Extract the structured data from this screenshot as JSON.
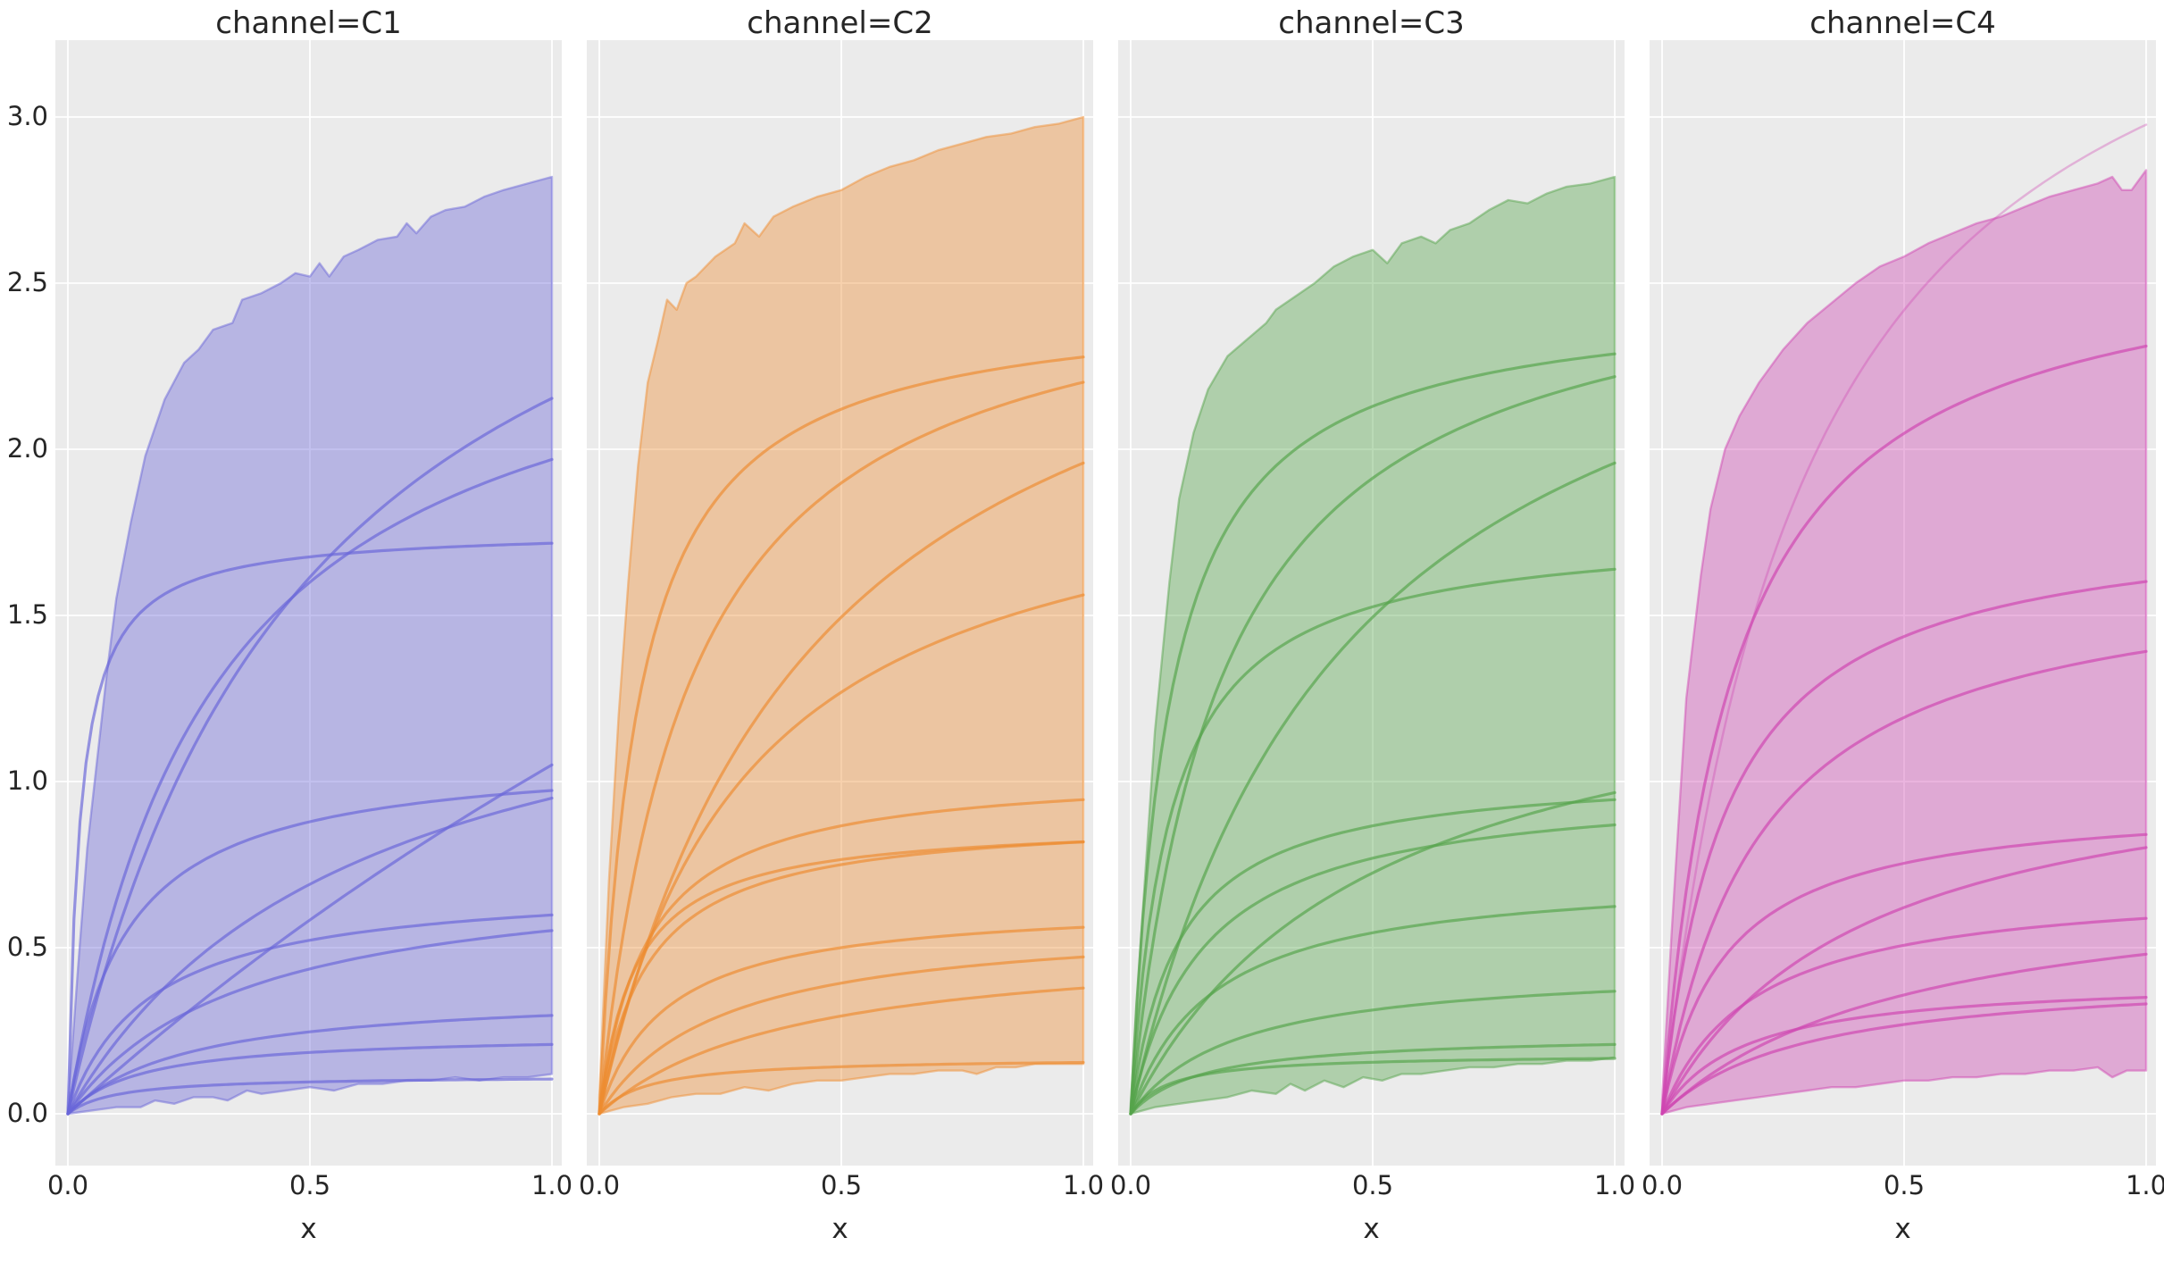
{
  "figure": {
    "background": "#ffffff",
    "panel_background": "#ebebeb",
    "grid_color": "#ffffff",
    "text_color": "#262626",
    "facet_variable": "channel",
    "facets": [
      "C1",
      "C2",
      "C3",
      "C4"
    ]
  },
  "chart_data": [
    {
      "type": "line",
      "title": "channel=C1",
      "facet": "C1",
      "color": "#6965d8",
      "xlabel": "x",
      "x_ticks": [
        0.0,
        0.5,
        1.0
      ],
      "x_tick_labels": [
        "0.0",
        "0.5",
        "1.0"
      ],
      "y_ticks": [
        0.0,
        0.5,
        1.0,
        1.5,
        2.0,
        2.5,
        3.0
      ],
      "y_tick_labels": [
        "0.0",
        "0.5",
        "1.0",
        "1.5",
        "2.0",
        "2.5",
        "3.0"
      ],
      "x_range": [
        0,
        1
      ],
      "y_range": [
        0,
        3
      ],
      "band": {
        "top": [
          [
            0,
            0.02
          ],
          [
            0.02,
            0.42
          ],
          [
            0.04,
            0.8
          ],
          [
            0.06,
            1.06
          ],
          [
            0.08,
            1.32
          ],
          [
            0.1,
            1.55
          ],
          [
            0.13,
            1.78
          ],
          [
            0.16,
            1.98
          ],
          [
            0.2,
            2.15
          ],
          [
            0.24,
            2.26
          ],
          [
            0.27,
            2.3
          ],
          [
            0.3,
            2.36
          ],
          [
            0.34,
            2.38
          ],
          [
            0.36,
            2.45
          ],
          [
            0.4,
            2.47
          ],
          [
            0.44,
            2.5
          ],
          [
            0.47,
            2.53
          ],
          [
            0.5,
            2.52
          ],
          [
            0.52,
            2.56
          ],
          [
            0.54,
            2.52
          ],
          [
            0.57,
            2.58
          ],
          [
            0.6,
            2.6
          ],
          [
            0.64,
            2.63
          ],
          [
            0.68,
            2.64
          ],
          [
            0.7,
            2.68
          ],
          [
            0.72,
            2.65
          ],
          [
            0.75,
            2.7
          ],
          [
            0.78,
            2.72
          ],
          [
            0.82,
            2.73
          ],
          [
            0.86,
            2.76
          ],
          [
            0.9,
            2.78
          ],
          [
            0.95,
            2.8
          ],
          [
            1,
            2.82
          ]
        ],
        "bottom": [
          [
            0,
            0
          ],
          [
            0.05,
            0.01
          ],
          [
            0.1,
            0.02
          ],
          [
            0.15,
            0.02
          ],
          [
            0.18,
            0.04
          ],
          [
            0.22,
            0.03
          ],
          [
            0.26,
            0.05
          ],
          [
            0.3,
            0.05
          ],
          [
            0.33,
            0.04
          ],
          [
            0.37,
            0.07
          ],
          [
            0.4,
            0.06
          ],
          [
            0.45,
            0.07
          ],
          [
            0.5,
            0.08
          ],
          [
            0.55,
            0.07
          ],
          [
            0.6,
            0.09
          ],
          [
            0.65,
            0.09
          ],
          [
            0.7,
            0.1
          ],
          [
            0.75,
            0.1
          ],
          [
            0.8,
            0.11
          ],
          [
            0.85,
            0.1
          ],
          [
            0.9,
            0.11
          ],
          [
            0.95,
            0.11
          ],
          [
            1,
            0.12
          ]
        ]
      },
      "curves": [
        {
          "vmax": 1.76,
          "km": 0.025,
          "y_at_x1": 1.72
        },
        {
          "vmax": 3.23,
          "km": 0.5,
          "y_at_x1": 2.15
        },
        {
          "vmax": 2.56,
          "km": 0.3,
          "y_at_x1": 1.97
        },
        {
          "vmax": 5.25,
          "km": 4.0,
          "y_at_x1": 1.05
        },
        {
          "vmax": 1.09,
          "km": 0.12,
          "y_at_x1": 0.97
        },
        {
          "vmax": 1.52,
          "km": 0.6,
          "y_at_x1": 0.95
        },
        {
          "vmax": 0.7,
          "km": 0.17,
          "y_at_x1": 0.6
        },
        {
          "vmax": 0.75,
          "km": 0.36,
          "y_at_x1": 0.55
        },
        {
          "vmax": 0.37,
          "km": 0.25,
          "y_at_x1": 0.3
        },
        {
          "vmax": 0.24,
          "km": 0.15,
          "y_at_x1": 0.21
        },
        {
          "vmax": 0.115,
          "km": 0.1,
          "y_at_x1": 0.1
        }
      ]
    },
    {
      "type": "line",
      "title": "channel=C2",
      "facet": "C2",
      "color": "#ee8c31",
      "xlabel": "x",
      "x_ticks": [
        0.0,
        0.5,
        1.0
      ],
      "x_tick_labels": [
        "0.0",
        "0.5",
        "1.0"
      ],
      "y_ticks": [
        0.0,
        0.5,
        1.0,
        1.5,
        2.0,
        2.5,
        3.0
      ],
      "y_tick_labels": [
        "0.0",
        "0.5",
        "1.0",
        "1.5",
        "2.0",
        "2.5",
        "3.0"
      ],
      "x_range": [
        0,
        1
      ],
      "y_range": [
        0,
        3
      ],
      "band": {
        "top": [
          [
            0,
            0.05
          ],
          [
            0.02,
            0.7
          ],
          [
            0.04,
            1.2
          ],
          [
            0.06,
            1.6
          ],
          [
            0.08,
            1.95
          ],
          [
            0.1,
            2.2
          ],
          [
            0.12,
            2.32
          ],
          [
            0.14,
            2.45
          ],
          [
            0.16,
            2.42
          ],
          [
            0.18,
            2.5
          ],
          [
            0.2,
            2.52
          ],
          [
            0.24,
            2.58
          ],
          [
            0.28,
            2.62
          ],
          [
            0.3,
            2.68
          ],
          [
            0.33,
            2.64
          ],
          [
            0.36,
            2.7
          ],
          [
            0.4,
            2.73
          ],
          [
            0.45,
            2.76
          ],
          [
            0.5,
            2.78
          ],
          [
            0.55,
            2.82
          ],
          [
            0.6,
            2.85
          ],
          [
            0.65,
            2.87
          ],
          [
            0.7,
            2.9
          ],
          [
            0.75,
            2.92
          ],
          [
            0.8,
            2.94
          ],
          [
            0.85,
            2.95
          ],
          [
            0.9,
            2.97
          ],
          [
            0.95,
            2.98
          ],
          [
            1,
            3.0
          ]
        ],
        "bottom": [
          [
            0,
            0
          ],
          [
            0.05,
            0.02
          ],
          [
            0.1,
            0.03
          ],
          [
            0.15,
            0.05
          ],
          [
            0.2,
            0.06
          ],
          [
            0.25,
            0.06
          ],
          [
            0.3,
            0.08
          ],
          [
            0.35,
            0.07
          ],
          [
            0.4,
            0.09
          ],
          [
            0.45,
            0.1
          ],
          [
            0.5,
            0.1
          ],
          [
            0.55,
            0.11
          ],
          [
            0.6,
            0.12
          ],
          [
            0.65,
            0.12
          ],
          [
            0.7,
            0.13
          ],
          [
            0.75,
            0.13
          ],
          [
            0.78,
            0.12
          ],
          [
            0.82,
            0.14
          ],
          [
            0.86,
            0.14
          ],
          [
            0.9,
            0.15
          ],
          [
            0.95,
            0.15
          ],
          [
            1,
            0.15
          ]
        ]
      },
      "curves": [
        {
          "vmax": 2.46,
          "km": 0.08,
          "y_at_x1": 2.28
        },
        {
          "vmax": 2.62,
          "km": 0.19,
          "y_at_x1": 2.2
        },
        {
          "vmax": 2.84,
          "km": 0.45,
          "y_at_x1": 1.96
        },
        {
          "vmax": 2.03,
          "km": 0.3,
          "y_at_x1": 1.56
        },
        {
          "vmax": 1.04,
          "km": 0.1,
          "y_at_x1": 0.95
        },
        {
          "vmax": 0.9,
          "km": 0.1,
          "y_at_x1": 0.82
        },
        {
          "vmax": 0.88,
          "km": 0.075,
          "y_at_x1": 0.82
        },
        {
          "vmax": 0.64,
          "km": 0.14,
          "y_at_x1": 0.56
        },
        {
          "vmax": 0.59,
          "km": 0.25,
          "y_at_x1": 0.47
        },
        {
          "vmax": 0.53,
          "km": 0.4,
          "y_at_x1": 0.38
        },
        {
          "vmax": 0.17,
          "km": 0.1,
          "y_at_x1": 0.15
        }
      ]
    },
    {
      "type": "line",
      "title": "channel=C3",
      "facet": "C3",
      "color": "#55a44b",
      "xlabel": "x",
      "x_ticks": [
        0.0,
        0.5,
        1.0
      ],
      "x_tick_labels": [
        "0.0",
        "0.5",
        "1.0"
      ],
      "y_ticks": [
        0.0,
        0.5,
        1.0,
        1.5,
        2.0,
        2.5,
        3.0
      ],
      "y_tick_labels": [
        "0.0",
        "0.5",
        "1.0",
        "1.5",
        "2.0",
        "2.5",
        "3.0"
      ],
      "x_range": [
        0,
        1
      ],
      "y_range": [
        0,
        3
      ],
      "band": {
        "top": [
          [
            0,
            0.03
          ],
          [
            0.02,
            0.5
          ],
          [
            0.05,
            1.15
          ],
          [
            0.08,
            1.6
          ],
          [
            0.1,
            1.85
          ],
          [
            0.13,
            2.05
          ],
          [
            0.16,
            2.18
          ],
          [
            0.2,
            2.28
          ],
          [
            0.24,
            2.33
          ],
          [
            0.28,
            2.38
          ],
          [
            0.3,
            2.42
          ],
          [
            0.34,
            2.46
          ],
          [
            0.38,
            2.5
          ],
          [
            0.42,
            2.55
          ],
          [
            0.46,
            2.58
          ],
          [
            0.5,
            2.6
          ],
          [
            0.53,
            2.56
          ],
          [
            0.56,
            2.62
          ],
          [
            0.6,
            2.64
          ],
          [
            0.63,
            2.62
          ],
          [
            0.66,
            2.66
          ],
          [
            0.7,
            2.68
          ],
          [
            0.74,
            2.72
          ],
          [
            0.78,
            2.75
          ],
          [
            0.82,
            2.74
          ],
          [
            0.86,
            2.77
          ],
          [
            0.9,
            2.79
          ],
          [
            0.95,
            2.8
          ],
          [
            1,
            2.82
          ]
        ],
        "bottom": [
          [
            0,
            0
          ],
          [
            0.05,
            0.02
          ],
          [
            0.1,
            0.03
          ],
          [
            0.15,
            0.04
          ],
          [
            0.2,
            0.05
          ],
          [
            0.25,
            0.07
          ],
          [
            0.3,
            0.06
          ],
          [
            0.33,
            0.09
          ],
          [
            0.36,
            0.07
          ],
          [
            0.4,
            0.1
          ],
          [
            0.44,
            0.08
          ],
          [
            0.48,
            0.11
          ],
          [
            0.52,
            0.1
          ],
          [
            0.56,
            0.12
          ],
          [
            0.6,
            0.12
          ],
          [
            0.65,
            0.13
          ],
          [
            0.7,
            0.14
          ],
          [
            0.75,
            0.14
          ],
          [
            0.8,
            0.15
          ],
          [
            0.85,
            0.15
          ],
          [
            0.9,
            0.16
          ],
          [
            0.95,
            0.16
          ],
          [
            1,
            0.17
          ]
        ]
      },
      "curves": [
        {
          "vmax": 2.47,
          "km": 0.08,
          "y_at_x1": 2.29
        },
        {
          "vmax": 2.64,
          "km": 0.19,
          "y_at_x1": 2.22
        },
        {
          "vmax": 2.84,
          "km": 0.45,
          "y_at_x1": 1.96
        },
        {
          "vmax": 1.77,
          "km": 0.08,
          "y_at_x1": 1.64
        },
        {
          "vmax": 1.45,
          "km": 0.5,
          "y_at_x1": 0.97
        },
        {
          "vmax": 1.04,
          "km": 0.1,
          "y_at_x1": 0.95
        },
        {
          "vmax": 1.0,
          "km": 0.15,
          "y_at_x1": 0.87
        },
        {
          "vmax": 0.73,
          "km": 0.17,
          "y_at_x1": 0.62
        },
        {
          "vmax": 0.45,
          "km": 0.22,
          "y_at_x1": 0.37
        },
        {
          "vmax": 0.24,
          "km": 0.15,
          "y_at_x1": 0.21
        },
        {
          "vmax": 0.18,
          "km": 0.08,
          "y_at_x1": 0.16
        }
      ]
    },
    {
      "type": "line",
      "title": "channel=C4",
      "facet": "C4",
      "color": "#ce46b1",
      "xlabel": "x",
      "x_ticks": [
        0.0,
        0.5,
        1.0
      ],
      "x_tick_labels": [
        "0.0",
        "0.5",
        "1.0"
      ],
      "y_ticks": [
        0.0,
        0.5,
        1.0,
        1.5,
        2.0,
        2.5,
        3.0
      ],
      "y_tick_labels": [
        "0.0",
        "0.5",
        "1.0",
        "1.5",
        "2.0",
        "2.5",
        "3.0"
      ],
      "x_range": [
        0,
        1
      ],
      "y_range": [
        0,
        3
      ],
      "band": {
        "top": [
          [
            0,
            0.04
          ],
          [
            0.02,
            0.55
          ],
          [
            0.05,
            1.25
          ],
          [
            0.08,
            1.62
          ],
          [
            0.1,
            1.82
          ],
          [
            0.13,
            2.0
          ],
          [
            0.16,
            2.1
          ],
          [
            0.2,
            2.2
          ],
          [
            0.25,
            2.3
          ],
          [
            0.3,
            2.38
          ],
          [
            0.35,
            2.44
          ],
          [
            0.4,
            2.5
          ],
          [
            0.45,
            2.55
          ],
          [
            0.5,
            2.58
          ],
          [
            0.55,
            2.62
          ],
          [
            0.6,
            2.65
          ],
          [
            0.65,
            2.68
          ],
          [
            0.7,
            2.7
          ],
          [
            0.75,
            2.73
          ],
          [
            0.8,
            2.76
          ],
          [
            0.85,
            2.78
          ],
          [
            0.9,
            2.8
          ],
          [
            0.93,
            2.82
          ],
          [
            0.95,
            2.78
          ],
          [
            0.97,
            2.78
          ],
          [
            1,
            2.84
          ]
        ],
        "bottom": [
          [
            0,
            0
          ],
          [
            0.05,
            0.02
          ],
          [
            0.1,
            0.03
          ],
          [
            0.15,
            0.04
          ],
          [
            0.2,
            0.05
          ],
          [
            0.25,
            0.06
          ],
          [
            0.3,
            0.07
          ],
          [
            0.35,
            0.08
          ],
          [
            0.4,
            0.08
          ],
          [
            0.45,
            0.09
          ],
          [
            0.5,
            0.1
          ],
          [
            0.55,
            0.1
          ],
          [
            0.6,
            0.11
          ],
          [
            0.65,
            0.11
          ],
          [
            0.7,
            0.12
          ],
          [
            0.75,
            0.12
          ],
          [
            0.8,
            0.13
          ],
          [
            0.85,
            0.13
          ],
          [
            0.9,
            0.14
          ],
          [
            0.93,
            0.11
          ],
          [
            0.96,
            0.13
          ],
          [
            1,
            0.13
          ]
        ]
      },
      "curves": [
        {
          "vmax": 3.87,
          "km": 0.3,
          "y_at_x1": 2.98,
          "light": true
        },
        {
          "vmax": 2.65,
          "km": 0.147,
          "y_at_x1": 2.31
        },
        {
          "vmax": 1.81,
          "km": 0.13,
          "y_at_x1": 1.6
        },
        {
          "vmax": 1.67,
          "km": 0.2,
          "y_at_x1": 1.39
        },
        {
          "vmax": 0.95,
          "km": 0.13,
          "y_at_x1": 0.84
        },
        {
          "vmax": 1.13,
          "km": 0.41,
          "y_at_x1": 0.8
        },
        {
          "vmax": 0.7,
          "km": 0.19,
          "y_at_x1": 0.59
        },
        {
          "vmax": 0.73,
          "km": 0.52,
          "y_at_x1": 0.48
        },
        {
          "vmax": 0.41,
          "km": 0.17,
          "y_at_x1": 0.35
        },
        {
          "vmax": 0.43,
          "km": 0.3,
          "y_at_x1": 0.33
        }
      ]
    }
  ]
}
